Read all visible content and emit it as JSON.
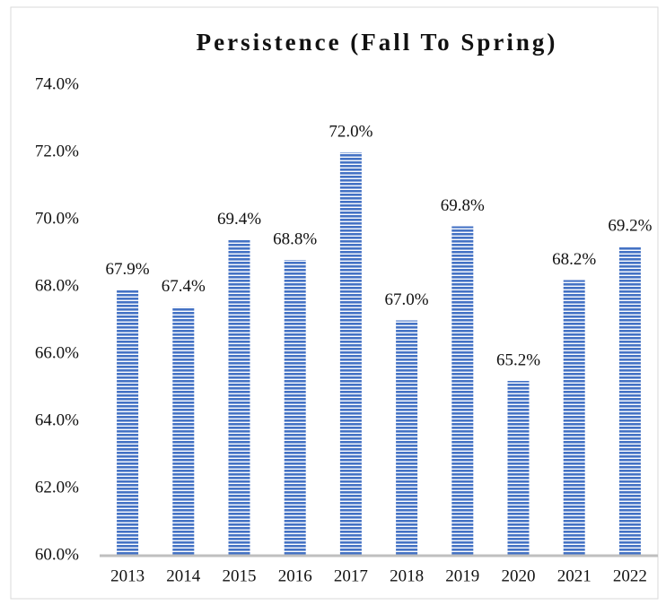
{
  "chart_data": {
    "type": "bar",
    "title": "Persistence (Fall To Spring)",
    "categories": [
      "2013",
      "2014",
      "2015",
      "2016",
      "2017",
      "2018",
      "2019",
      "2020",
      "2021",
      "2022"
    ],
    "values": [
      67.9,
      67.4,
      69.4,
      68.8,
      72.0,
      67.0,
      69.8,
      65.2,
      68.2,
      69.2
    ],
    "value_labels": [
      "67.9%",
      "67.4%",
      "69.4%",
      "68.8%",
      "72.0%",
      "67.0%",
      "69.8%",
      "65.2%",
      "68.2%",
      "69.2%"
    ],
    "color": "#4472c4",
    "ylim": [
      60,
      74
    ],
    "yticks": [
      {
        "value": 60,
        "label": "60.0%"
      },
      {
        "value": 62,
        "label": "62.0%"
      },
      {
        "value": 64,
        "label": "64.0%"
      },
      {
        "value": 66,
        "label": "66.0%"
      },
      {
        "value": 68,
        "label": "68.0%"
      },
      {
        "value": 70,
        "label": "70.0%"
      },
      {
        "value": 72,
        "label": "72.0%"
      },
      {
        "value": 74,
        "label": "74.0%"
      }
    ],
    "grid": false
  }
}
